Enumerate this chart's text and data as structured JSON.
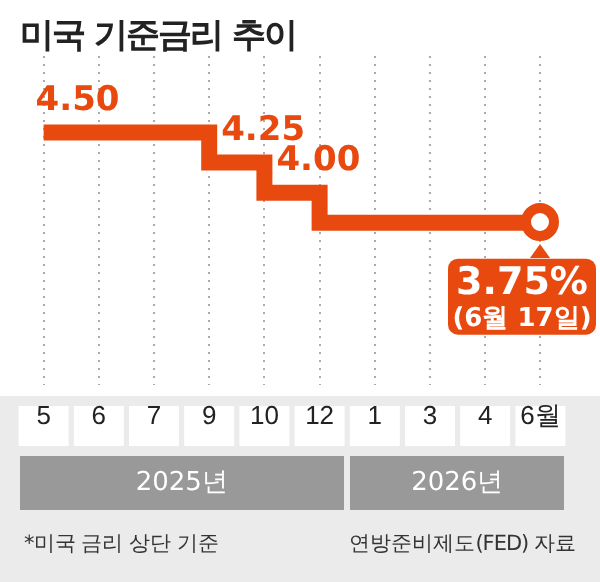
{
  "chart_data": {
    "type": "step",
    "title": "미국 기준금리 추이",
    "categories": [
      "5",
      "6",
      "7",
      "9",
      "10",
      "12",
      "1",
      "3",
      "4",
      "6월"
    ],
    "series": [
      {
        "color": "#e8490f",
        "values": [
          4.5,
          4.5,
          4.5,
          4.25,
          4.0,
          3.75,
          3.75,
          3.75,
          3.75,
          3.75
        ],
        "value_labels": [
          "4.50",
          null,
          null,
          "4.25",
          "4.00",
          null,
          null,
          null,
          null,
          "3.75%"
        ]
      }
    ],
    "grid": "x",
    "legend": false,
    "tick_labels": "x",
    "annotations": [
      "2025년",
      "2026년",
      "*미국 금리 상단 기준",
      "연방준비제도(FED) 자료",
      "(6월 17일)"
    ]
  }
}
